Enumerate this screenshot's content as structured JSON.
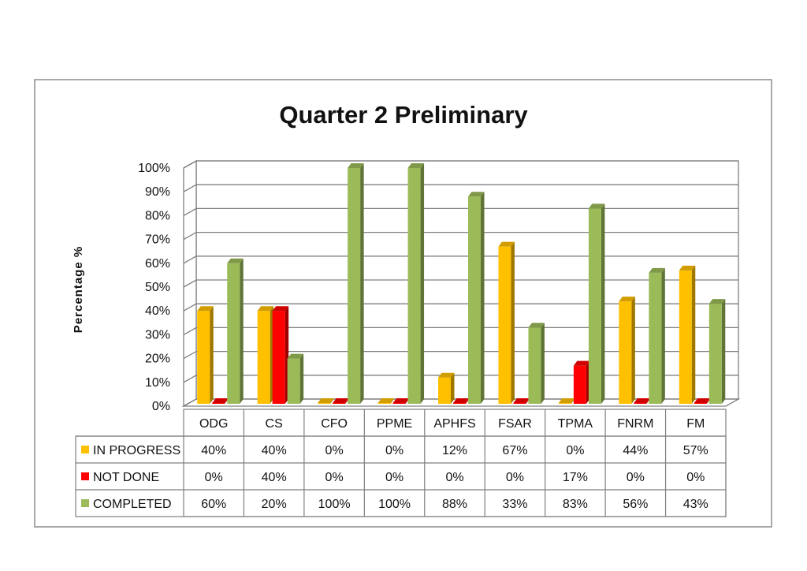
{
  "chart_data": {
    "type": "bar",
    "title": "Quarter 2 Preliminary",
    "ylabel": "Percentage %",
    "xlabel": "",
    "ylim": [
      0,
      100
    ],
    "yticks": [
      "0%",
      "10%",
      "20%",
      "30%",
      "40%",
      "50%",
      "60%",
      "70%",
      "80%",
      "90%",
      "100%"
    ],
    "grid": true,
    "legend": "data-table-left",
    "categories": [
      "ODG",
      "CS",
      "CFO",
      "PPME",
      "APHFS",
      "FSAR",
      "TPMA",
      "FNRM",
      "FM"
    ],
    "series": [
      {
        "name": "IN PROGRESS",
        "color": "#FFC000",
        "values": [
          40,
          40,
          0,
          0,
          12,
          67,
          0,
          44,
          57
        ],
        "labels": [
          "40%",
          "40%",
          "0%",
          "0%",
          "12%",
          "67%",
          "0%",
          "44%",
          "57%"
        ]
      },
      {
        "name": "NOT DONE",
        "color": "#FF0000",
        "values": [
          0,
          40,
          0,
          0,
          0,
          0,
          17,
          0,
          0
        ],
        "labels": [
          "0%",
          "40%",
          "0%",
          "0%",
          "0%",
          "0%",
          "17%",
          "0%",
          "0%"
        ]
      },
      {
        "name": "COMPLETED",
        "color": "#9BBB59",
        "values": [
          60,
          20,
          100,
          100,
          88,
          33,
          83,
          56,
          43
        ],
        "labels": [
          "60%",
          "20%",
          "100%",
          "100%",
          "88%",
          "33%",
          "83%",
          "56%",
          "43%"
        ]
      }
    ]
  }
}
